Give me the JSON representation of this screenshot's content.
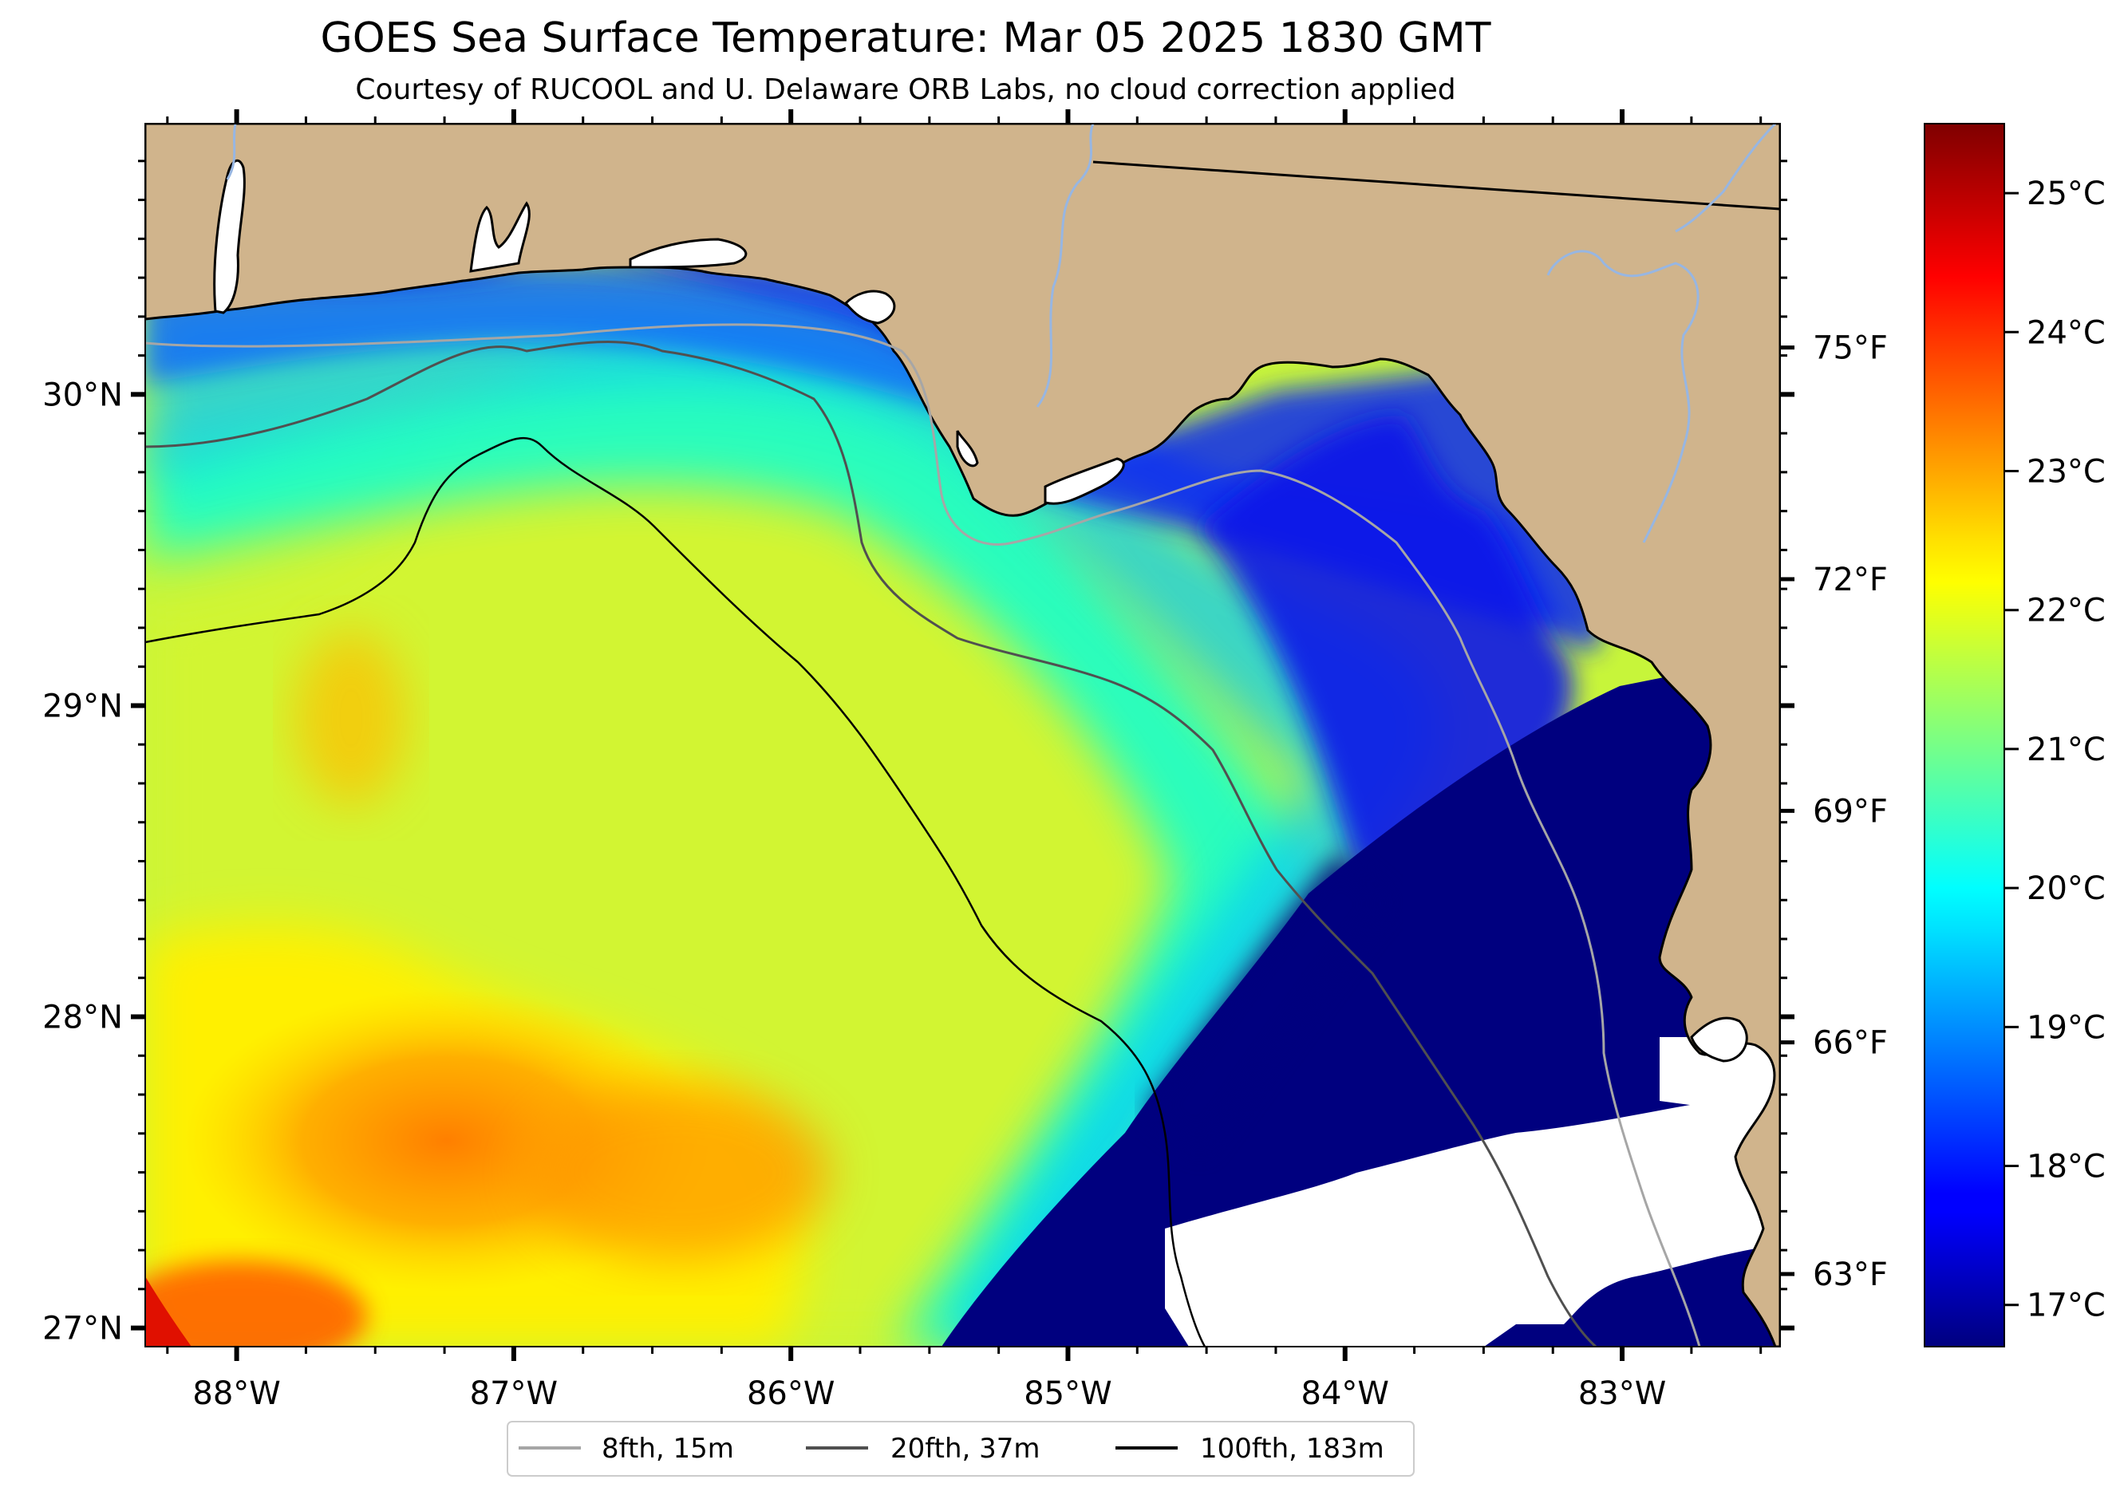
{
  "title": "GOES Sea Surface Temperature: Mar 05 2025 1830 GMT",
  "subtitle": "Courtesy of RUCOOL and U. Delaware ORB Labs, no cloud correction applied",
  "map": {
    "lon_range": [
      -88.33,
      -82.43
    ],
    "lat_range": [
      26.94,
      30.87
    ],
    "x_ticks": [
      {
        "value": -88,
        "label": "88°W"
      },
      {
        "value": -87,
        "label": "87°W"
      },
      {
        "value": -86,
        "label": "86°W"
      },
      {
        "value": -85,
        "label": "85°W"
      },
      {
        "value": -84,
        "label": "84°W"
      },
      {
        "value": -83,
        "label": "83°W"
      }
    ],
    "y_ticks": [
      {
        "value": 30,
        "label": "30°N"
      },
      {
        "value": 29,
        "label": "29°N"
      },
      {
        "value": 28,
        "label": "28°N"
      },
      {
        "value": 27,
        "label": "27°N"
      }
    ],
    "land_color": "#d0b48c",
    "cloud_color": "#ffffff",
    "coast_color": "#000000",
    "river_color": "#97b6e2"
  },
  "legend": {
    "placement": "bottom-center",
    "items": [
      {
        "label": "8fth, 15m",
        "color": "#a6a6a6"
      },
      {
        "label": "20fth, 37m",
        "color": "#505050"
      },
      {
        "label": "100fth, 183m",
        "color": "#000000"
      }
    ]
  },
  "colorbar": {
    "colormap": "jet",
    "range_c": [
      16.7,
      25.5
    ],
    "celsius_ticks": [
      {
        "value": 17,
        "label": "17°C"
      },
      {
        "value": 18,
        "label": "18°C"
      },
      {
        "value": 19,
        "label": "19°C"
      },
      {
        "value": 20,
        "label": "20°C"
      },
      {
        "value": 21,
        "label": "21°C"
      },
      {
        "value": 22,
        "label": "22°C"
      },
      {
        "value": 23,
        "label": "23°C"
      },
      {
        "value": 24,
        "label": "24°C"
      },
      {
        "value": 25,
        "label": "25°C"
      }
    ],
    "fahrenheit_ticks": [
      {
        "value": 63,
        "label": "63°F"
      },
      {
        "value": 66,
        "label": "66°F"
      },
      {
        "value": 69,
        "label": "69°F"
      },
      {
        "value": 72,
        "label": "72°F"
      },
      {
        "value": 75,
        "label": "75°F"
      }
    ]
  }
}
